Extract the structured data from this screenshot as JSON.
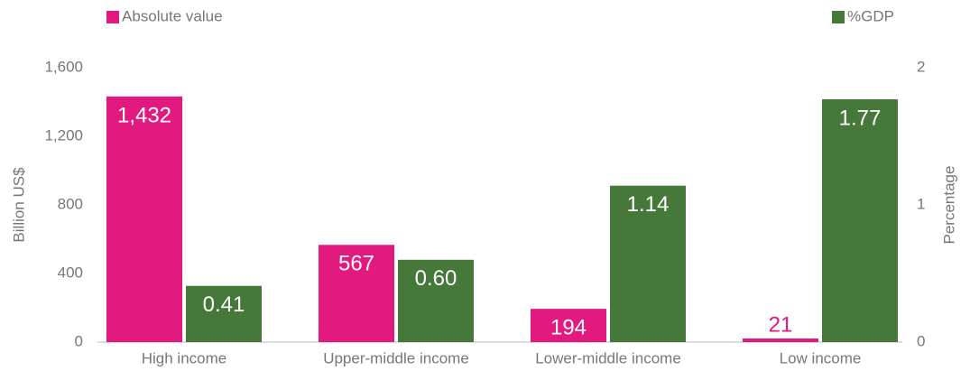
{
  "chart_data": {
    "type": "bar",
    "categories": [
      "High income",
      "Upper-middle income",
      "Lower-middle income",
      "Low income"
    ],
    "series": [
      {
        "name": "Absolute value",
        "color": "#e2197f",
        "values": [
          1432,
          567,
          194,
          21
        ],
        "value_labels": [
          "1,432",
          "567",
          "194",
          "21"
        ]
      },
      {
        "name": "%GDP",
        "color": "#46783a",
        "axis": "y2",
        "values": [
          0.41,
          0.6,
          1.14,
          1.77
        ],
        "value_labels": [
          "0.41",
          "0.60",
          "1.14",
          "1.77"
        ]
      }
    ],
    "ylabel": "Billion US$",
    "y2label": "Percentage",
    "ylim": [
      0,
      1600
    ],
    "yticks": [
      0,
      400,
      800,
      {
        "value": 1200,
        "label": "1,200"
      },
      {
        "value": 1600,
        "label": "1,600"
      }
    ],
    "y2lim": [
      0,
      2
    ],
    "y2ticks": [
      0,
      1,
      2
    ]
  }
}
